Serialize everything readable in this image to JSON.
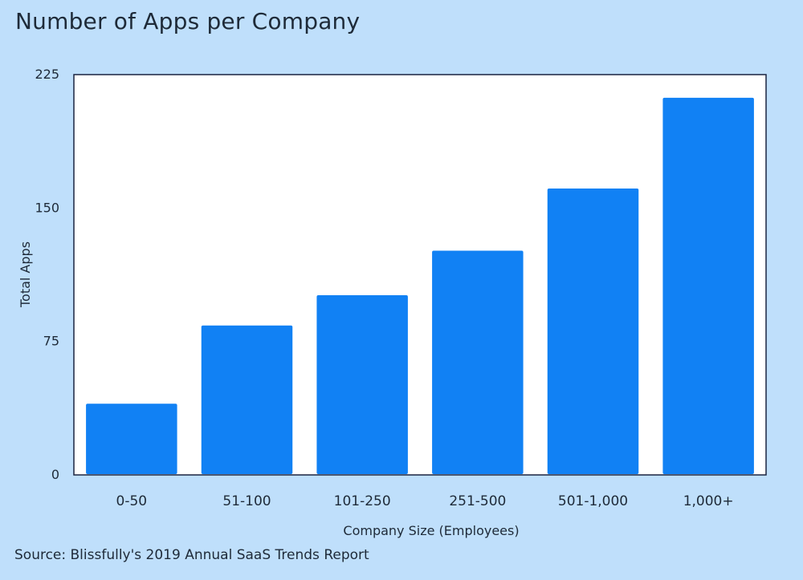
{
  "title": "Number of Apps per Company",
  "source": "Source: Blissfully's 2019 Annual SaaS Trends Report",
  "colors": {
    "background": "#bfdffb",
    "plot_bg": "#ffffff",
    "bar": "#1181f4",
    "axis": "#1a2440"
  },
  "chart_data": {
    "type": "bar",
    "title": "Number of Apps per Company",
    "xlabel": "Company Size (Employees)",
    "ylabel": "Total Apps",
    "categories": [
      "0-50",
      "51-100",
      "101-250",
      "251-500",
      "501-1,000",
      "1,000+"
    ],
    "values": [
      40,
      84,
      101,
      126,
      161,
      212
    ],
    "ylim": [
      0,
      225
    ],
    "yticks": [
      0,
      75,
      150,
      225
    ],
    "ytick_labels": [
      "0",
      "75",
      "150",
      "225"
    ],
    "grid": false,
    "legend": "none"
  }
}
